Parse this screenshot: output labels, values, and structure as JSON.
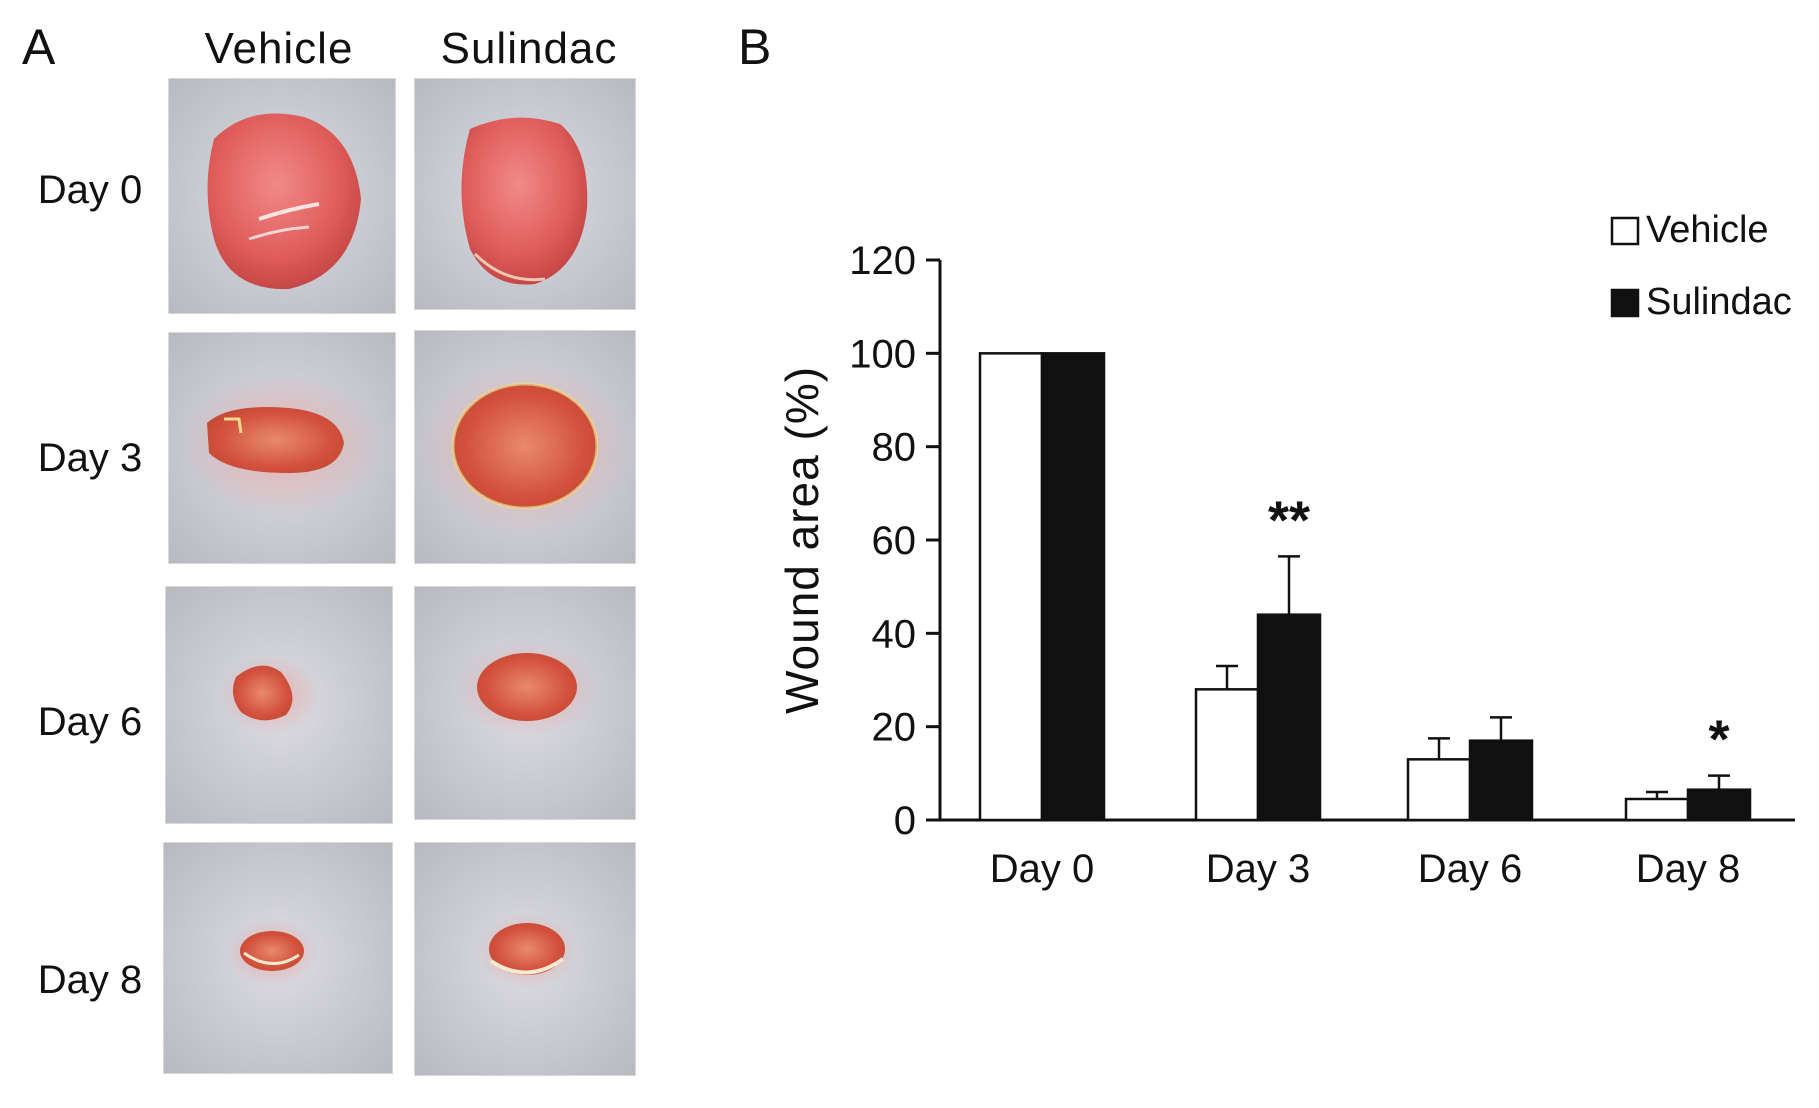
{
  "panel_a": {
    "letter": "A",
    "columns": [
      "Vehicle",
      "Sulindac"
    ],
    "rows": [
      "Day 0",
      "Day 3",
      "Day 6",
      "Day 8"
    ]
  },
  "panel_b": {
    "letter": "B"
  },
  "colors": {
    "vehicle_fill": "#ffffff",
    "sulindac_fill": "#111111",
    "wound_red": "#d9453f",
    "fur": "#cfcfd6"
  },
  "chart_data": {
    "type": "bar",
    "categories": [
      "Day 0",
      "Day 3",
      "Day 6",
      "Day 8"
    ],
    "series": [
      {
        "name": "Vehicle",
        "values": [
          100,
          28,
          13,
          4.5
        ],
        "errors": [
          0,
          5,
          4.5,
          1.5
        ]
      },
      {
        "name": "Sulindac",
        "values": [
          100,
          44,
          17,
          6.5
        ],
        "errors": [
          0,
          12.5,
          5,
          3
        ]
      }
    ],
    "ylabel": "Wound area (%)",
    "xlabel": "",
    "ylim": [
      0,
      120
    ],
    "yticks": [
      0,
      20,
      40,
      60,
      80,
      100,
      120
    ],
    "legend": "top-right",
    "grid": false,
    "annotations": [
      {
        "category": "Day 3",
        "text": "**"
      },
      {
        "category": "Day 8",
        "text": "*"
      }
    ]
  }
}
